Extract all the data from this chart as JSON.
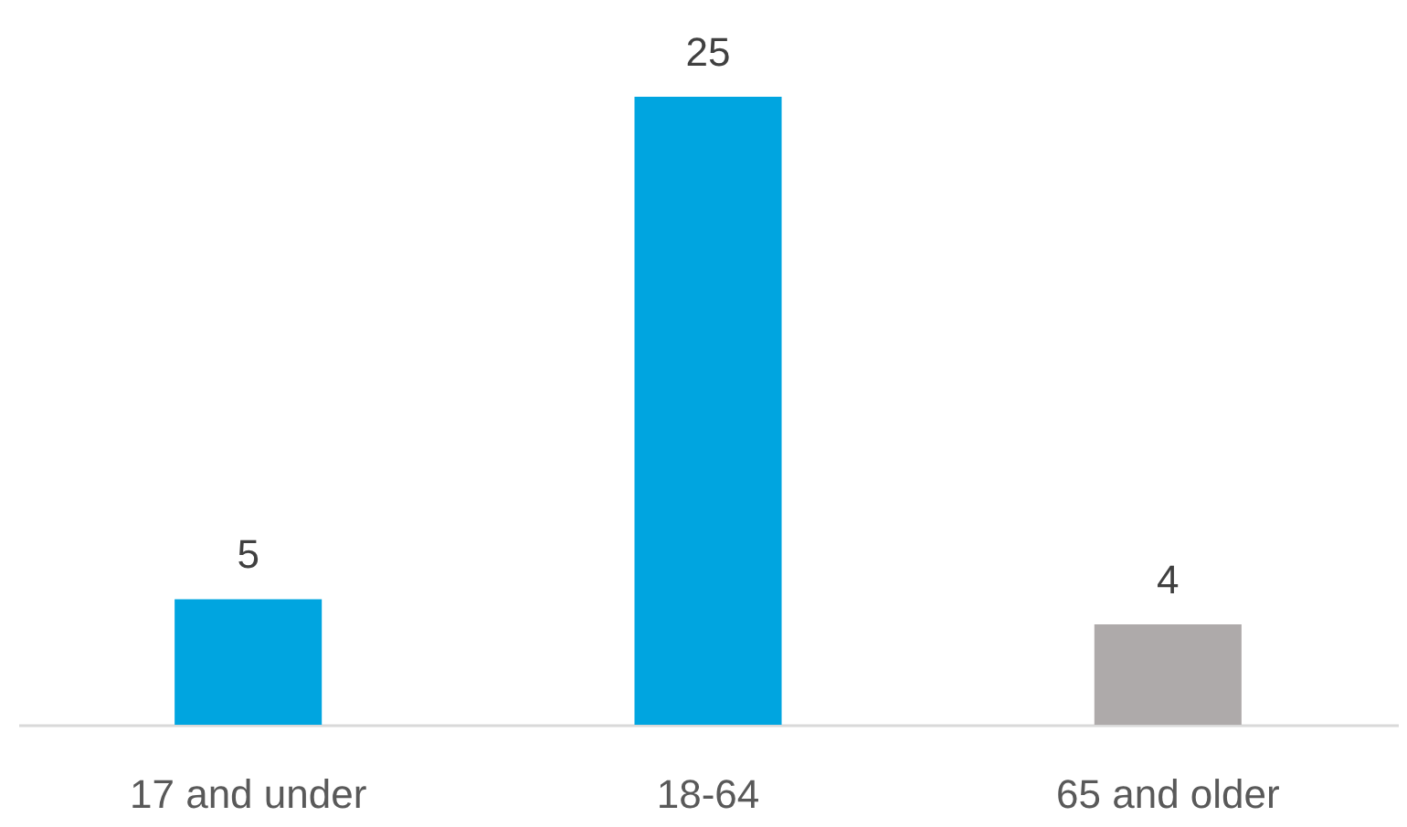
{
  "chart_data": {
    "type": "bar",
    "categories": [
      "17 and under",
      "18-64",
      "65 and older"
    ],
    "values": [
      5,
      25,
      4
    ],
    "colors": [
      "#00a5e0",
      "#00a5e0",
      "#aeaaaa"
    ],
    "data_labels": true,
    "grid": false
  }
}
